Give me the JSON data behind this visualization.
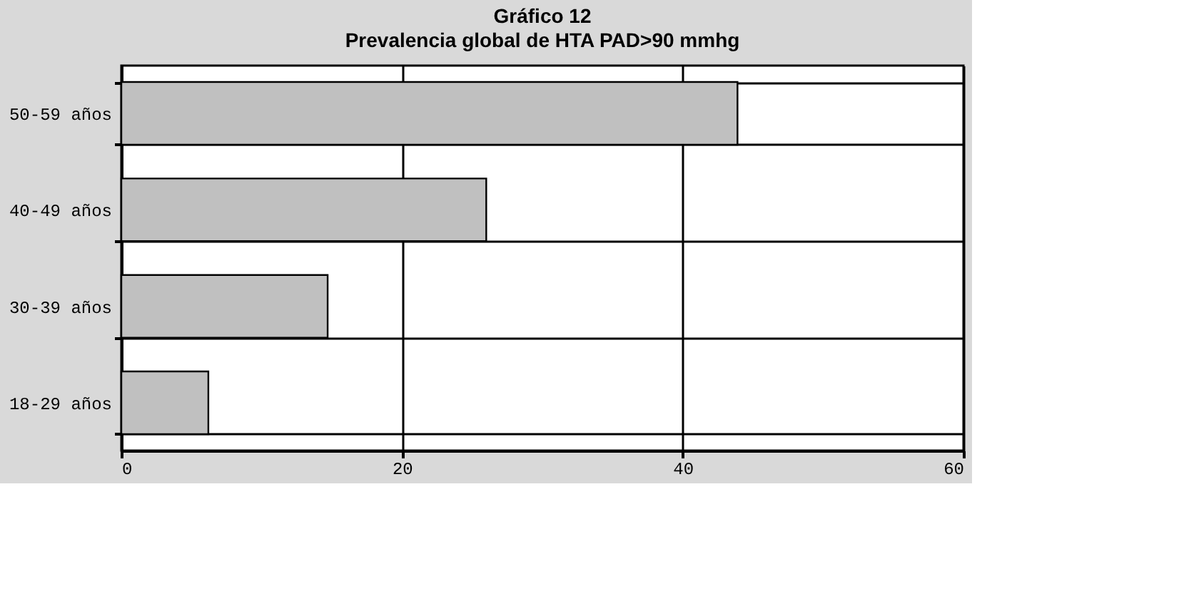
{
  "chart_data": {
    "type": "bar",
    "orientation": "horizontal",
    "title": "Gráfico 12",
    "subtitle": "Prevalencia global de HTA PAD>90 mmhg",
    "categories": [
      "50-59 años",
      "40-49 años",
      "30-39 años",
      "18-29 años"
    ],
    "values": [
      43.9,
      26.0,
      14.7,
      6.2
    ],
    "color": "#c0c0c0",
    "xlim": [
      0,
      60
    ],
    "xticks": [
      0,
      20,
      40,
      60
    ],
    "grid": true
  }
}
